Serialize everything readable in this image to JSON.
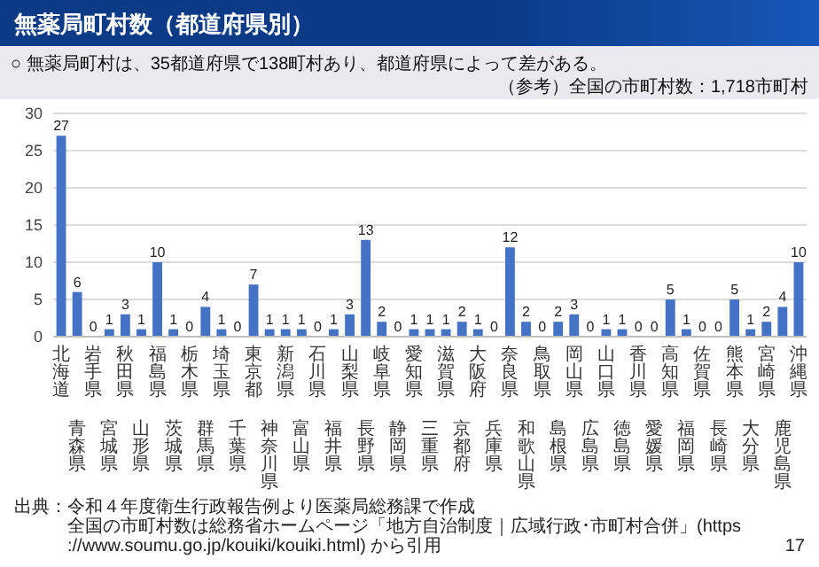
{
  "chart_data": {
    "type": "bar",
    "title": "無薬局町村数（都道府県別）",
    "subtitle": "○ 無薬局町村は、35都道府県で138町村あり、都道府県によって差がある。",
    "categories": [
      "北海道",
      "青森県",
      "岩手県",
      "宮城県",
      "秋田県",
      "山形県",
      "福島県",
      "茨城県",
      "栃木県",
      "群馬県",
      "埼玉県",
      "千葉県",
      "東京都",
      "神奈川県",
      "新潟県",
      "富山県",
      "石川県",
      "福井県",
      "山梨県",
      "長野県",
      "岐阜県",
      "静岡県",
      "愛知県",
      "三重県",
      "滋賀県",
      "京都府",
      "大阪府",
      "兵庫県",
      "奈良県",
      "和歌山県",
      "鳥取県",
      "島根県",
      "岡山県",
      "広島県",
      "山口県",
      "徳島県",
      "香川県",
      "愛媛県",
      "高知県",
      "福岡県",
      "佐賀県",
      "長崎県",
      "熊本県",
      "大分県",
      "宮崎県",
      "鹿児島県",
      "沖縄県"
    ],
    "values": [
      27,
      6,
      0,
      1,
      3,
      1,
      10,
      1,
      0,
      4,
      1,
      0,
      7,
      1,
      1,
      1,
      0,
      1,
      3,
      13,
      2,
      0,
      1,
      1,
      1,
      2,
      1,
      0,
      12,
      2,
      0,
      2,
      3,
      0,
      1,
      1,
      0,
      0,
      5,
      1,
      0,
      0,
      5,
      1,
      2,
      4,
      10
    ],
    "color": "#4472c4",
    "ylim": [
      0,
      30
    ],
    "yticks": [
      0,
      5,
      10,
      15,
      20,
      25,
      30
    ],
    "grid": "y",
    "data_labels": true,
    "annotations": [
      "（参考）全国の市町村数：1,718市町村",
      "出典：令和４年度衛生行政報告例より医薬局総務課で作成",
      "全国の市町村数は総務省ホームページ「地方自治制度｜広域行政･市町村合併」(https://www.soumu.go.jp/kouiki/kouiki.html) から引用",
      "17"
    ]
  }
}
